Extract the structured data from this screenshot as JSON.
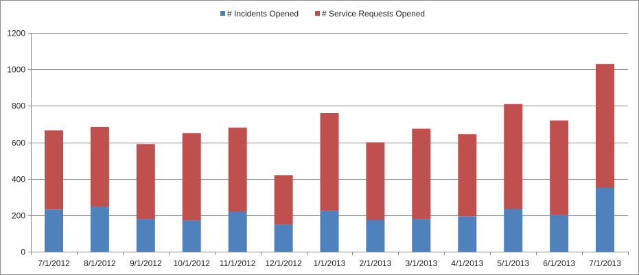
{
  "chart_data": {
    "type": "bar",
    "stacked": true,
    "title": "",
    "xlabel": "",
    "ylabel": "",
    "categories": [
      "7/1/2012",
      "8/1/2012",
      "9/1/2012",
      "10/1/2012",
      "11/1/2012",
      "12/1/2012",
      "1/1/2013",
      "2/1/2013",
      "3/1/2013",
      "4/1/2013",
      "5/1/2013",
      "6/1/2013",
      "7/1/2013"
    ],
    "series": [
      {
        "name": "# Incidents Opened",
        "color": "#4f81bd",
        "values": [
          230,
          245,
          180,
          170,
          220,
          150,
          225,
          175,
          180,
          195,
          235,
          200,
          350
        ]
      },
      {
        "name": "# Service Requests Opened",
        "color": "#c0504d",
        "values": [
          435,
          440,
          410,
          480,
          460,
          270,
          535,
          425,
          495,
          450,
          575,
          520,
          680
        ]
      }
    ],
    "ylim": [
      0,
      1200
    ],
    "yticks": [
      0,
      200,
      400,
      600,
      800,
      1000,
      1200
    ],
    "grid": true,
    "legend_position": "top"
  }
}
